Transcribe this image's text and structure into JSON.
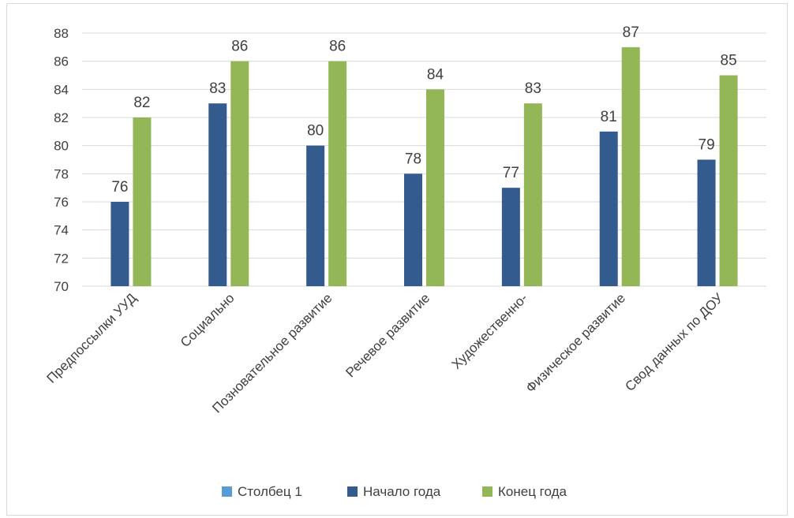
{
  "chart_data": {
    "type": "bar",
    "categories": [
      "Предпоссылки УУД",
      "Социально",
      "Позновательное развитие",
      "Речевое развитие",
      "Художественно-",
      "Физическое развитие",
      "Свод данных по ДОУ"
    ],
    "series": [
      {
        "name": "Столбец 1",
        "color": "#5b9bd5",
        "values": [
          null,
          null,
          null,
          null,
          null,
          null,
          null
        ]
      },
      {
        "name": "Начало года",
        "color": "#335b8e",
        "values": [
          76,
          83,
          80,
          78,
          77,
          81,
          79
        ]
      },
      {
        "name": "Конец года",
        "color": "#93b757",
        "values": [
          82,
          86,
          86,
          84,
          83,
          87,
          85
        ]
      }
    ],
    "ylim": [
      70,
      88
    ],
    "ytick_step": 2,
    "ytick_labels": [
      "70",
      "72",
      "74",
      "76",
      "78",
      "80",
      "82",
      "84",
      "86",
      "88"
    ],
    "grid": true,
    "legend_position": "bottom",
    "data_labels": true
  }
}
